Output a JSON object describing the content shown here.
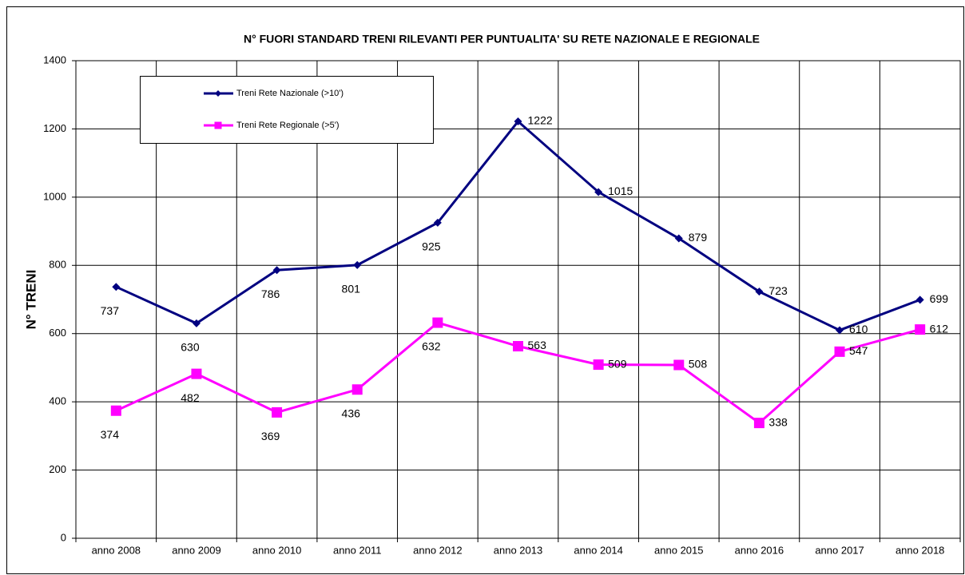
{
  "chart_data": {
    "type": "line",
    "title": "N° FUORI STANDARD TRENI RILEVANTI PER PUNTUALITA' SU RETE NAZIONALE E REGIONALE",
    "y_label": "N° TRENI",
    "categories": [
      "anno 2008",
      "anno 2009",
      "anno 2010",
      "anno 2011",
      "anno 2012",
      "anno 2013",
      "anno 2014",
      "anno 2015",
      "anno 2016",
      "anno 2017",
      "anno 2018"
    ],
    "series": [
      {
        "name": "Treni Rete Nazionale (>10')",
        "color": "#000080",
        "marker": "diamond",
        "values": [
          737,
          630,
          786,
          801,
          925,
          1222,
          1015,
          879,
          723,
          610,
          699
        ]
      },
      {
        "name": "Treni Rete Regionale (>5')",
        "color": "#ff00ff",
        "marker": "square",
        "values": [
          374,
          482,
          369,
          436,
          632,
          563,
          509,
          508,
          338,
          547,
          612
        ]
      }
    ],
    "ylim": [
      0,
      1400
    ],
    "yticks": [
      0,
      200,
      400,
      600,
      800,
      1000,
      1200,
      1400
    ],
    "grid": true,
    "legend": "upper left"
  }
}
